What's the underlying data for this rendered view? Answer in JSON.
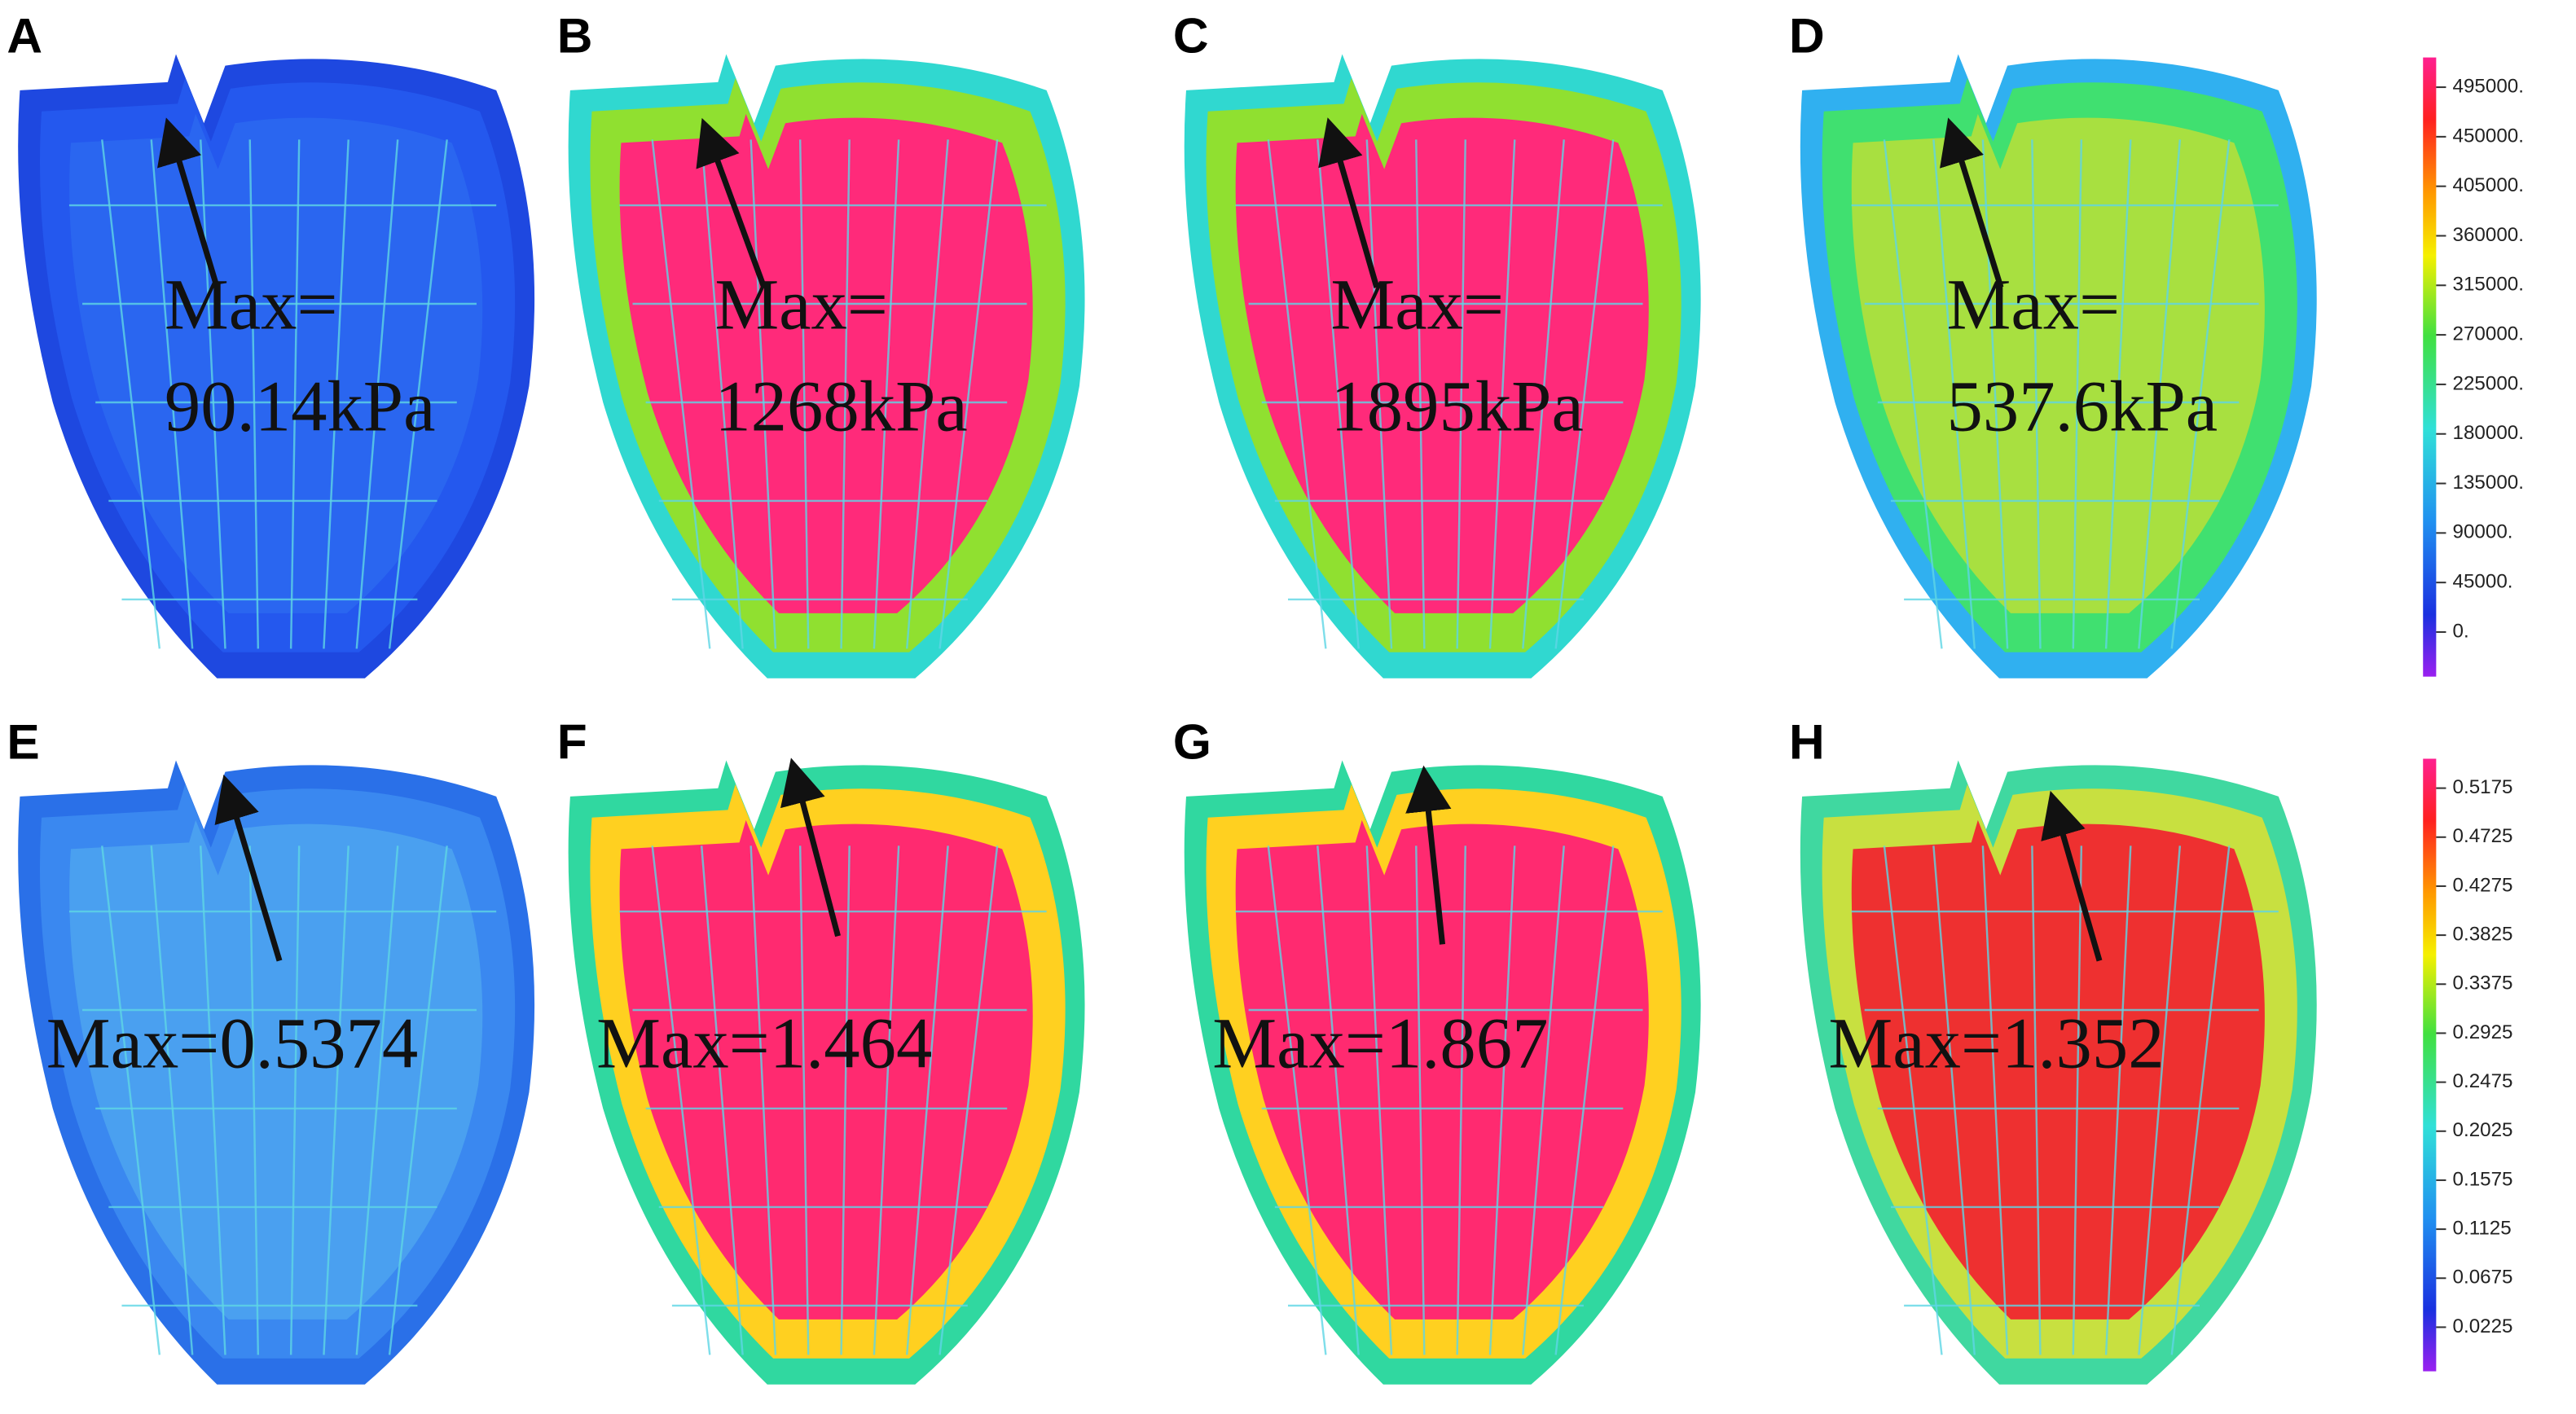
{
  "panels": [
    {
      "label": "A",
      "annotation": [
        "Max=",
        "90.14kPa"
      ]
    },
    {
      "label": "B",
      "annotation": [
        "Max=",
        "1268kPa"
      ]
    },
    {
      "label": "C",
      "annotation": [
        "Max=",
        "1895kPa"
      ]
    },
    {
      "label": "D",
      "annotation": [
        "Max=",
        "537.6kPa"
      ]
    },
    {
      "label": "E",
      "annotation": [
        "Max=0.5374"
      ]
    },
    {
      "label": "F",
      "annotation": [
        "Max=1.464"
      ]
    },
    {
      "label": "G",
      "annotation": [
        "Max=1.867"
      ]
    },
    {
      "label": "H",
      "annotation": [
        "Max=1.352"
      ]
    }
  ],
  "colorbars": [
    {
      "ticks": [
        "495000.",
        "450000.",
        "405000.",
        "360000.",
        "315000.",
        "270000.",
        "225000.",
        "180000.",
        "135000.",
        "90000.",
        "45000.",
        "0."
      ]
    },
    {
      "ticks": [
        "0.5175",
        "0.4725",
        "0.4275",
        "0.3825",
        "0.3375",
        "0.2925",
        "0.2475",
        "0.2025",
        "0.1575",
        "0.1125",
        "0.0675",
        "0.0225"
      ]
    }
  ]
}
